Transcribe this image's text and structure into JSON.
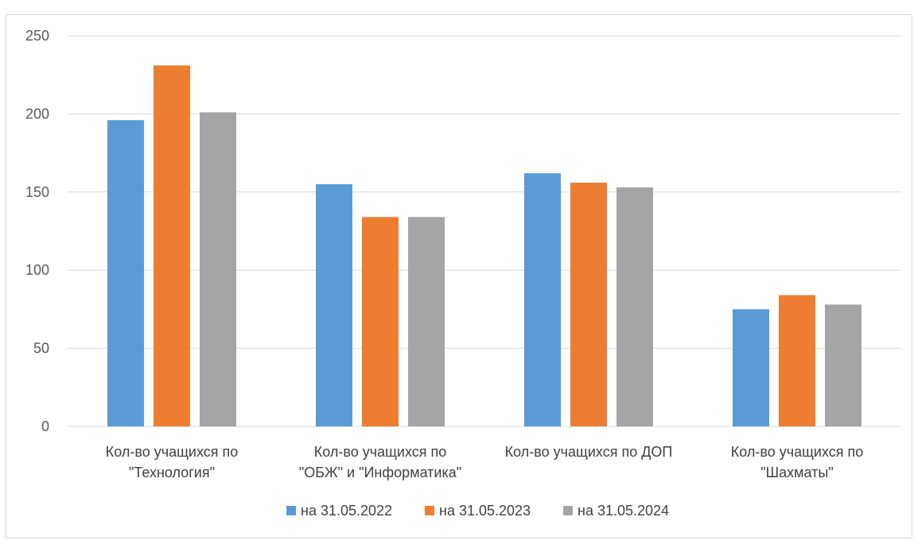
{
  "chart_data": {
    "type": "bar",
    "categories": [
      [
        "Кол-во учащихся по",
        "\"Технология\""
      ],
      [
        "Кол-во учащихся по",
        "\"ОБЖ\" и  \"Информатика\""
      ],
      [
        "Кол-во учащихся по ДОП"
      ],
      [
        "Кол-во учащихся по",
        "\"Шахматы\""
      ]
    ],
    "series": [
      {
        "name": "на 31.05.2022",
        "color": "#5b9bd5",
        "values": [
          196,
          155,
          162,
          75
        ]
      },
      {
        "name": "на 31.05.2023",
        "color": "#ed7d31",
        "values": [
          231,
          134,
          156,
          84
        ]
      },
      {
        "name": "на 31.05.2024",
        "color": "#a5a5a5",
        "values": [
          201,
          134,
          153,
          78
        ]
      }
    ],
    "ylim": [
      0,
      250
    ],
    "yticks": [
      "0",
      "50",
      "100",
      "150",
      "200",
      "250"
    ],
    "grid": true,
    "legend": "bottom",
    "title": "",
    "xlabel": "",
    "ylabel": ""
  }
}
